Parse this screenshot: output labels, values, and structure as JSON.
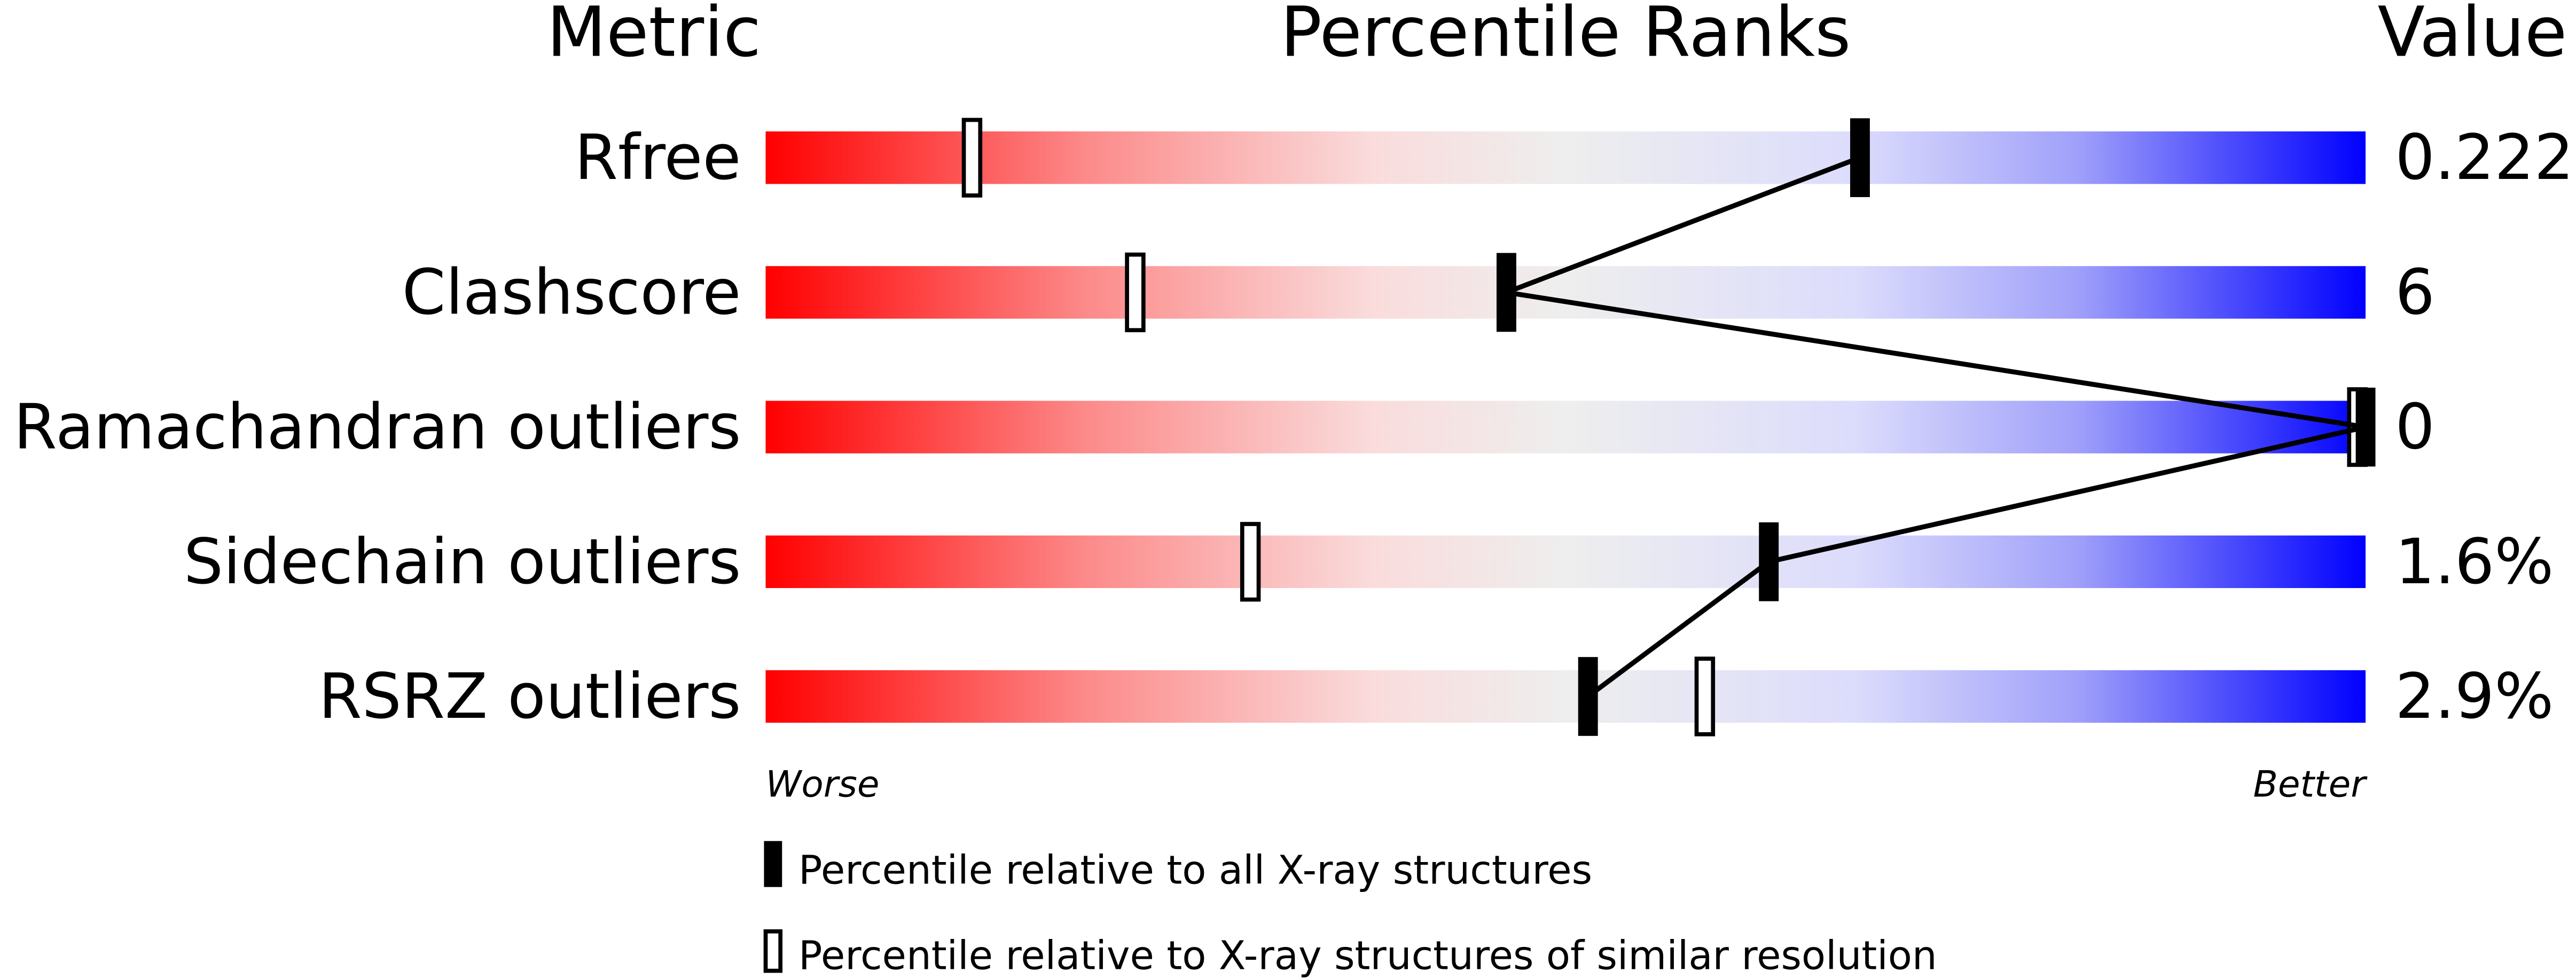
{
  "chart_data": {
    "type": "percentile-slider",
    "headers": {
      "metric": "Metric",
      "ranks": "Percentile Ranks",
      "value": "Value"
    },
    "xlim": [
      0,
      100
    ],
    "metrics": [
      {
        "name": "Rfree",
        "value": "0.222",
        "percentile_all": 68.4,
        "percentile_similar": 12.9
      },
      {
        "name": "Clashscore",
        "value": "6",
        "percentile_all": 46.3,
        "percentile_similar": 23.1
      },
      {
        "name": "Ramachandran outliers",
        "value": "0",
        "percentile_all": 100,
        "percentile_similar": 100
      },
      {
        "name": "Sidechain outliers",
        "value": "1.6%",
        "percentile_all": 62.7,
        "percentile_similar": 30.3
      },
      {
        "name": "RSRZ outliers",
        "value": "2.9%",
        "percentile_all": 51.4,
        "percentile_similar": 58.7
      }
    ],
    "axis_labels": {
      "left": "Worse",
      "right": "Better"
    },
    "legend": {
      "all": "Percentile relative to all X-ray structures",
      "similar": "Percentile relative to X-ray structures of similar resolution"
    },
    "colors": {
      "worse": "#ff0000",
      "middle": "#f0f0f0",
      "better": "#0000ff",
      "marker": "#000000"
    }
  }
}
